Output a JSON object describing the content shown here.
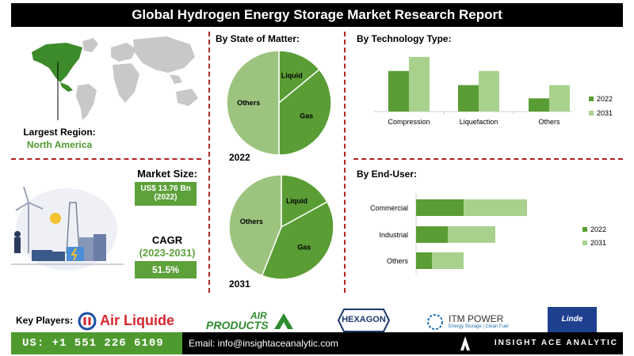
{
  "header": {
    "title": "Global Hydrogen Energy Storage Market Research Report"
  },
  "region": {
    "label": "Largest Region:",
    "value": "North America"
  },
  "market_size": {
    "label": "Market Size:",
    "value": "US$ 13.76 Bn",
    "year": "(2022)"
  },
  "cagr": {
    "label": "CAGR",
    "period": "(2023-2031)",
    "value": "51.5%"
  },
  "sections": {
    "state_title": "By  State of Matter:",
    "technology_title": "By Technology Type:",
    "enduser_title": "By End-User:"
  },
  "colors": {
    "dark_green": "#5a9d35",
    "light_green": "#a9d18e",
    "pie_light": "#9dc47f",
    "dash_red": "#b22222"
  },
  "chart_data": [
    {
      "type": "pie",
      "year_label": "2022",
      "slices": [
        {
          "label": "Liquid",
          "value": 14
        },
        {
          "label": "Gas",
          "value": 36
        },
        {
          "label": "Others",
          "value": 50
        }
      ]
    },
    {
      "type": "pie",
      "year_label": "2031",
      "slices": [
        {
          "label": "Liquid",
          "value": 17
        },
        {
          "label": "Gas",
          "value": 39
        },
        {
          "label": "Others",
          "value": 44
        }
      ]
    },
    {
      "type": "bar",
      "categories": [
        "Compression",
        "Liquefaction",
        "Others"
      ],
      "series": [
        {
          "name": "2022",
          "values": [
            46,
            30,
            15
          ]
        },
        {
          "name": "2031",
          "values": [
            62,
            46,
            30
          ]
        }
      ],
      "ylim": [
        0,
        70
      ],
      "legend_position": "right"
    },
    {
      "type": "bar",
      "orientation": "horizontal",
      "stacked": true,
      "categories": [
        "Commercial",
        "Industrial",
        "Others"
      ],
      "series": [
        {
          "name": "2022",
          "values": [
            60,
            40,
            20
          ]
        },
        {
          "name": "2031",
          "values": [
            80,
            60,
            40
          ]
        }
      ],
      "xlim": [
        0,
        160
      ],
      "legend_position": "right"
    }
  ],
  "key_players": {
    "label": "Key Players:",
    "logos": [
      "Air Liquide",
      "AIR",
      "PRODUCTS",
      "HEXAGON",
      "ITM POWER",
      "Energy Storage | Clean Fuel",
      "Linde"
    ]
  },
  "footer": {
    "phone": "US: +1 551 226 6109",
    "email": "Email: info@insightaceanalytic.com",
    "brand": "INSIGHT ACE ANALYTIC"
  }
}
